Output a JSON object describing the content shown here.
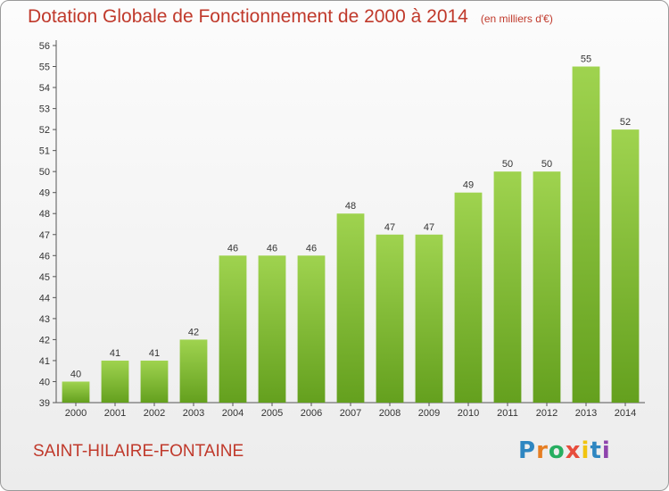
{
  "header": {
    "title": "Dotation Globale de Fonctionnement de 2000 à 2014",
    "subtitle": "(en milliers d'€)"
  },
  "footer": {
    "commune": "SAINT-HILAIRE-FONTAINE",
    "logo_letters": [
      {
        "ch": "P",
        "color": "#2e86c1"
      },
      {
        "ch": "r",
        "color": "#e67e22"
      },
      {
        "ch": "o",
        "color": "#27ae60"
      },
      {
        "ch": "x",
        "color": "#e74c3c"
      },
      {
        "ch": "i",
        "color": "#f1c40f"
      },
      {
        "ch": "t",
        "color": "#2e86c1"
      },
      {
        "ch": "i",
        "color": "#8e44ad"
      }
    ]
  },
  "chart_data": {
    "type": "bar",
    "title": "Dotation Globale de Fonctionnement de 2000 à 2014",
    "subtitle": "(en milliers d'€)",
    "categories": [
      "2000",
      "2001",
      "2002",
      "2003",
      "2004",
      "2005",
      "2006",
      "2007",
      "2008",
      "2009",
      "2010",
      "2011",
      "2012",
      "2013",
      "2014"
    ],
    "values": [
      40,
      41,
      41,
      42,
      46,
      46,
      46,
      48,
      47,
      47,
      49,
      50,
      50,
      55,
      52
    ],
    "ylim": [
      39,
      56
    ],
    "yticks": [
      39,
      40,
      41,
      42,
      43,
      44,
      45,
      46,
      47,
      48,
      49,
      50,
      51,
      52,
      53,
      54,
      55,
      56
    ],
    "grid": false,
    "bar_color_top": "#9fd34f",
    "bar_color_bottom": "#64a01e"
  }
}
